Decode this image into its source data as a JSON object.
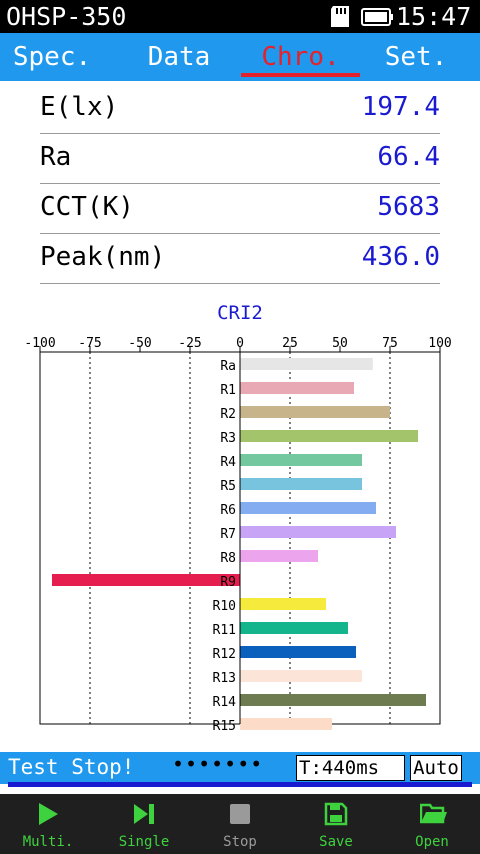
{
  "status": {
    "app_title": "OHSP-350",
    "time": "15:47"
  },
  "tabs": [
    {
      "label": "Spec.",
      "active": false
    },
    {
      "label": "Data",
      "active": false
    },
    {
      "label": "Chro.",
      "active": true
    },
    {
      "label": "Set.",
      "active": false
    }
  ],
  "readings": [
    {
      "label": "E(lx)",
      "value": "197.4"
    },
    {
      "label": "Ra",
      "value": "66.4"
    },
    {
      "label": "CCT(K)",
      "value": "5683"
    },
    {
      "label": "Peak(nm)",
      "value": "436.0"
    }
  ],
  "chart_data": {
    "type": "bar",
    "orientation": "horizontal",
    "title": "CRI2",
    "xlim": [
      -100,
      100
    ],
    "xticks": [
      -100,
      -75,
      -50,
      -25,
      0,
      25,
      50,
      75,
      100
    ],
    "gridlines": [
      -75,
      -25,
      25,
      75
    ],
    "categories": [
      "Ra",
      "R1",
      "R2",
      "R3",
      "R4",
      "R5",
      "R6",
      "R7",
      "R8",
      "R9",
      "R10",
      "R11",
      "R12",
      "R13",
      "R14",
      "R15"
    ],
    "values": [
      66.4,
      57,
      75,
      89,
      61,
      61,
      68,
      78,
      39,
      -94,
      43,
      54,
      58,
      61,
      93,
      46
    ],
    "colors": [
      "#e6e6e6",
      "#e8a8b4",
      "#c8b48a",
      "#a4c46c",
      "#74c8a0",
      "#78c4de",
      "#84acf0",
      "#c8a4f6",
      "#eca4ec",
      "#e61e50",
      "#f6ea3c",
      "#14b48c",
      "#0a60bc",
      "#fce4d8",
      "#6e7a50",
      "#fcdcc8"
    ]
  },
  "state_bar": {
    "status_text": "Test Stop!",
    "dots": "•••••••",
    "integration_time": "T:440ms",
    "mode": "Auto"
  },
  "toolbar": [
    {
      "label": "Multi.",
      "icon": "play-icon",
      "color": "#3fd23f"
    },
    {
      "label": "Single",
      "icon": "step-forward-icon",
      "color": "#3fd23f"
    },
    {
      "label": "Stop",
      "icon": "stop-icon",
      "color": "#9a9a9a"
    },
    {
      "label": "Save",
      "icon": "save-icon",
      "color": "#3fd23f"
    },
    {
      "label": "Open",
      "icon": "folder-open-icon",
      "color": "#3fd23f"
    }
  ]
}
